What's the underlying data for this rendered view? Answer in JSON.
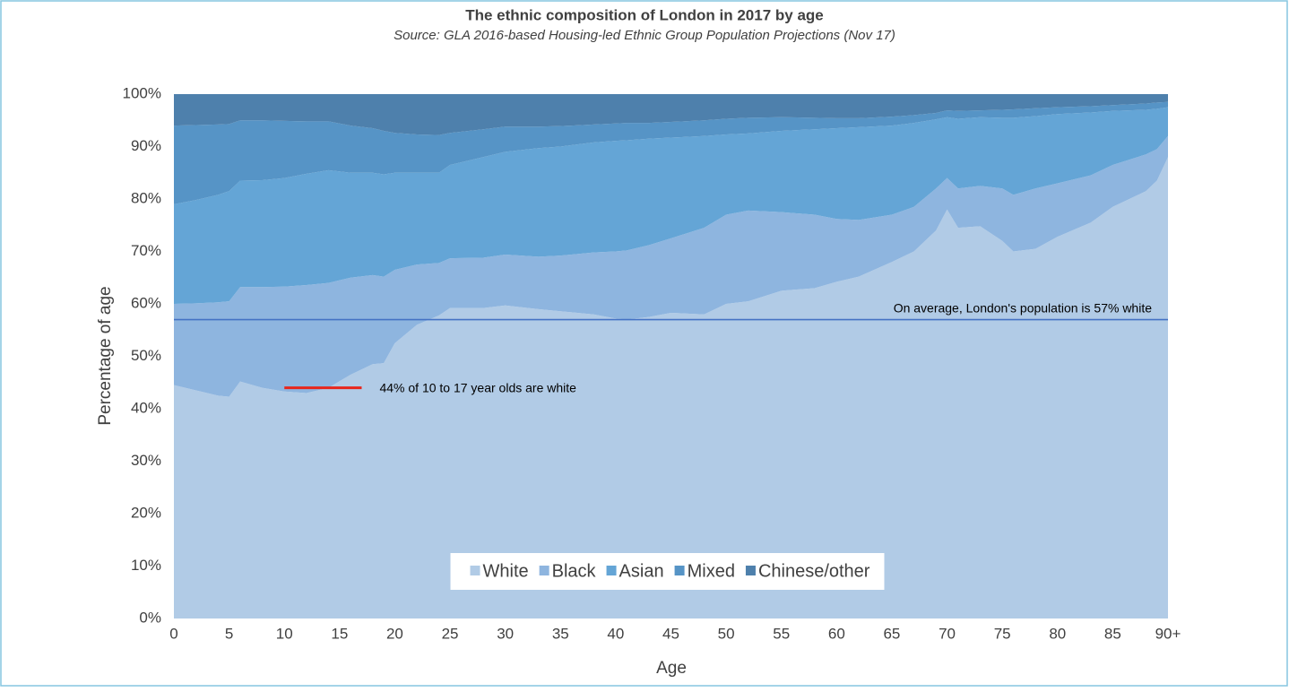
{
  "chart_data": {
    "type": "stacked-area",
    "title": "The ethnic composition of London in 2017 by age",
    "subtitle": "Source: GLA 2016-based Housing-led Ethnic Group Population Projections (Nov 17)",
    "x_label": "Age",
    "y_label": "Percentage of age",
    "x": [
      0,
      2,
      4,
      5,
      6,
      8,
      10,
      12,
      14,
      16,
      18,
      19,
      20,
      22,
      24,
      25,
      28,
      30,
      33,
      35,
      38,
      40,
      41,
      43,
      45,
      48,
      50,
      52,
      55,
      58,
      60,
      62,
      65,
      67,
      69,
      70,
      71,
      73,
      75,
      76,
      78,
      80,
      83,
      85,
      88,
      89,
      90
    ],
    "series": [
      {
        "name": "White",
        "color": "#b1cbe6",
        "values": [
          44.5,
          43.5,
          42.5,
          42.3,
          45.2,
          44,
          43.3,
          43,
          44,
          46.5,
          48.5,
          48.7,
          52.5,
          56,
          57.8,
          59.2,
          59.2,
          59.7,
          59,
          58.6,
          58,
          57.2,
          57,
          57.5,
          58.3,
          58,
          60,
          60.5,
          62.5,
          63,
          64.2,
          65.2,
          68,
          70,
          74,
          78,
          74.5,
          74.8,
          72,
          70,
          70.5,
          72.8,
          75.5,
          78.5,
          81.5,
          83.5,
          88
        ]
      },
      {
        "name": "Black",
        "color": "#8eb5df",
        "values": [
          15.5,
          16.6,
          17.8,
          18.2,
          18,
          19.2,
          20,
          20.6,
          20,
          18.5,
          17,
          16.5,
          14,
          11.5,
          10,
          9.5,
          9.6,
          9.7,
          10,
          10.6,
          11.8,
          12.8,
          13.2,
          13.7,
          14.2,
          16.5,
          17,
          17.3,
          15,
          14,
          12,
          10.8,
          9,
          8.5,
          8,
          6,
          7.5,
          7.7,
          10,
          10.8,
          11.5,
          10.2,
          9,
          8,
          7,
          6,
          4
        ]
      },
      {
        "name": "Asian",
        "color": "#64a5d6",
        "values": [
          19,
          19.7,
          20.5,
          21,
          20.3,
          20.4,
          20.7,
          21.2,
          21.5,
          20,
          19.5,
          19.5,
          18.5,
          17.5,
          17.2,
          17.8,
          19.2,
          19.6,
          20.7,
          20.8,
          21,
          21.1,
          21,
          20.3,
          19.2,
          17.5,
          15.3,
          14.7,
          15.5,
          16.3,
          17.3,
          17.7,
          17,
          16,
          13.2,
          11.6,
          13.3,
          13.1,
          13.5,
          14.7,
          13.8,
          13.2,
          12,
          10.3,
          8.5,
          7.7,
          5.5
        ]
      },
      {
        "name": "Mixed",
        "color": "#5694c6",
        "values": [
          15,
          14.3,
          13.4,
          12.8,
          11.5,
          11.4,
          10.9,
          10,
          9.3,
          9,
          8.5,
          8.3,
          7.6,
          7.3,
          7.2,
          6.1,
          5.3,
          4.8,
          4.1,
          3.9,
          3.4,
          3.3,
          3.3,
          3,
          3,
          3,
          3,
          3,
          2.6,
          2.2,
          1.9,
          1.7,
          1.7,
          1.5,
          1.2,
          1.3,
          1.5,
          1.3,
          1.5,
          1.6,
          1.5,
          1.3,
          1.2,
          1.1,
          1.2,
          1.2,
          1
        ]
      },
      {
        "name": "Chinese/other",
        "color": "#4e80ac",
        "values": [
          6,
          5.9,
          5.8,
          5.7,
          5,
          5,
          5.1,
          5.2,
          5.2,
          6,
          6.5,
          7,
          7.4,
          7.7,
          7.8,
          7.4,
          6.7,
          6.2,
          6.2,
          6.1,
          5.8,
          5.6,
          5.5,
          5.5,
          5.3,
          5,
          4.7,
          4.5,
          4.4,
          4.5,
          4.6,
          4.6,
          4.3,
          4,
          3.6,
          3.1,
          3.2,
          3.1,
          3,
          2.9,
          2.7,
          2.5,
          2.3,
          2.1,
          1.8,
          1.6,
          1.5
        ]
      }
    ],
    "xlim": [
      0,
      90
    ],
    "xticks": [
      0,
      5,
      10,
      15,
      20,
      25,
      30,
      35,
      40,
      45,
      50,
      55,
      60,
      65,
      70,
      75,
      80,
      85,
      {
        "value": 90,
        "label": "90+"
      }
    ],
    "ylim": [
      0,
      100
    ],
    "yticks": [
      {
        "value": 0,
        "label": "0%"
      },
      {
        "value": 10,
        "label": "10%"
      },
      {
        "value": 20,
        "label": "20%"
      },
      {
        "value": 30,
        "label": "30%"
      },
      {
        "value": 40,
        "label": "40%"
      },
      {
        "value": 50,
        "label": "50%"
      },
      {
        "value": 60,
        "label": "60%"
      },
      {
        "value": 70,
        "label": "70%"
      },
      {
        "value": 80,
        "label": "80%"
      },
      {
        "value": 90,
        "label": "90%"
      },
      {
        "value": 100,
        "label": "100%"
      }
    ],
    "legend": "bottom",
    "annotations": [
      {
        "text": "On average, London's population is 57% white",
        "value": 57,
        "x": [
          0,
          90
        ],
        "color": "#4472c4"
      },
      {
        "text": "44% of 10 to 17 year olds are white",
        "value": 44,
        "x": [
          10,
          17
        ],
        "color": "#e8261c"
      }
    ]
  }
}
